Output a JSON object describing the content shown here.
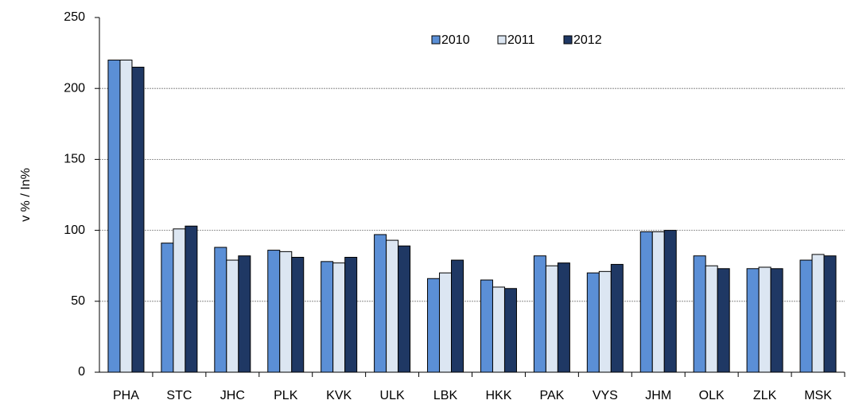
{
  "chart_data": {
    "type": "bar",
    "ylabel": "v % / In%",
    "categories": [
      "PHA",
      "STC",
      "JHC",
      "PLK",
      "KVK",
      "ULK",
      "LBK",
      "HKK",
      "PAK",
      "VYS",
      "JHM",
      "OLK",
      "ZLK",
      "MSK"
    ],
    "series": [
      {
        "name": "2010",
        "color": "#5b8fd6",
        "values": [
          220,
          91,
          88,
          86,
          78,
          97,
          66,
          65,
          82,
          70,
          99,
          82,
          73,
          79
        ]
      },
      {
        "name": "2011",
        "color": "#dce6f2",
        "values": [
          220,
          101,
          79,
          85,
          77,
          93,
          70,
          60,
          75,
          71,
          99,
          75,
          74,
          83
        ]
      },
      {
        "name": "2012",
        "color": "#1f3864",
        "values": [
          215,
          103,
          82,
          81,
          81,
          89,
          79,
          59,
          77,
          76,
          100,
          73,
          73,
          82
        ]
      }
    ],
    "ylim": [
      0,
      250
    ],
    "yticks": [
      0,
      50,
      100,
      150,
      200,
      250
    ],
    "grid": true,
    "legend": "top"
  }
}
